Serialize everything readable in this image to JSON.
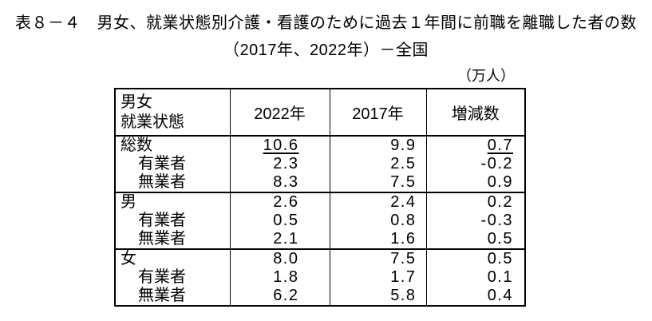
{
  "title": {
    "line1": "表８－４　男女、就業状態別介護・看護のために過去１年間に前職を離職した者の数",
    "line2": "（2017年、2022年）－全国"
  },
  "unit_label": "（万人）",
  "colors": {
    "text": "#000000",
    "border": "#000000",
    "background": "#ffffff"
  },
  "table": {
    "header": {
      "col0_line1": "男女",
      "col0_line2": "就業状態",
      "col1": "2022年",
      "col2": "2017年",
      "col3": "増減数"
    },
    "rows": [
      {
        "label": "総数",
        "indent": false,
        "y2022": "10.6",
        "y2017": "9.9",
        "change": "0.7",
        "underline": [
          "y2022",
          "change"
        ]
      },
      {
        "label": "有業者",
        "indent": true,
        "y2022": "2.3",
        "y2017": "2.5",
        "change": "-0.2",
        "underline": []
      },
      {
        "label": "無業者",
        "indent": true,
        "y2022": "8.3",
        "y2017": "7.5",
        "change": "0.9",
        "underline": []
      },
      {
        "label": "男",
        "indent": false,
        "y2022": "2.6",
        "y2017": "2.4",
        "change": "0.2",
        "underline": []
      },
      {
        "label": "有業者",
        "indent": true,
        "y2022": "0.5",
        "y2017": "0.8",
        "change": "-0.3",
        "underline": []
      },
      {
        "label": "無業者",
        "indent": true,
        "y2022": "2.1",
        "y2017": "1.6",
        "change": "0.5",
        "underline": []
      },
      {
        "label": "女",
        "indent": false,
        "y2022": "8.0",
        "y2017": "7.5",
        "change": "0.5",
        "underline": []
      },
      {
        "label": "有業者",
        "indent": true,
        "y2022": "1.8",
        "y2017": "1.7",
        "change": "0.1",
        "underline": []
      },
      {
        "label": "無業者",
        "indent": true,
        "y2022": "6.2",
        "y2017": "5.8",
        "change": "0.4",
        "underline": []
      }
    ]
  }
}
